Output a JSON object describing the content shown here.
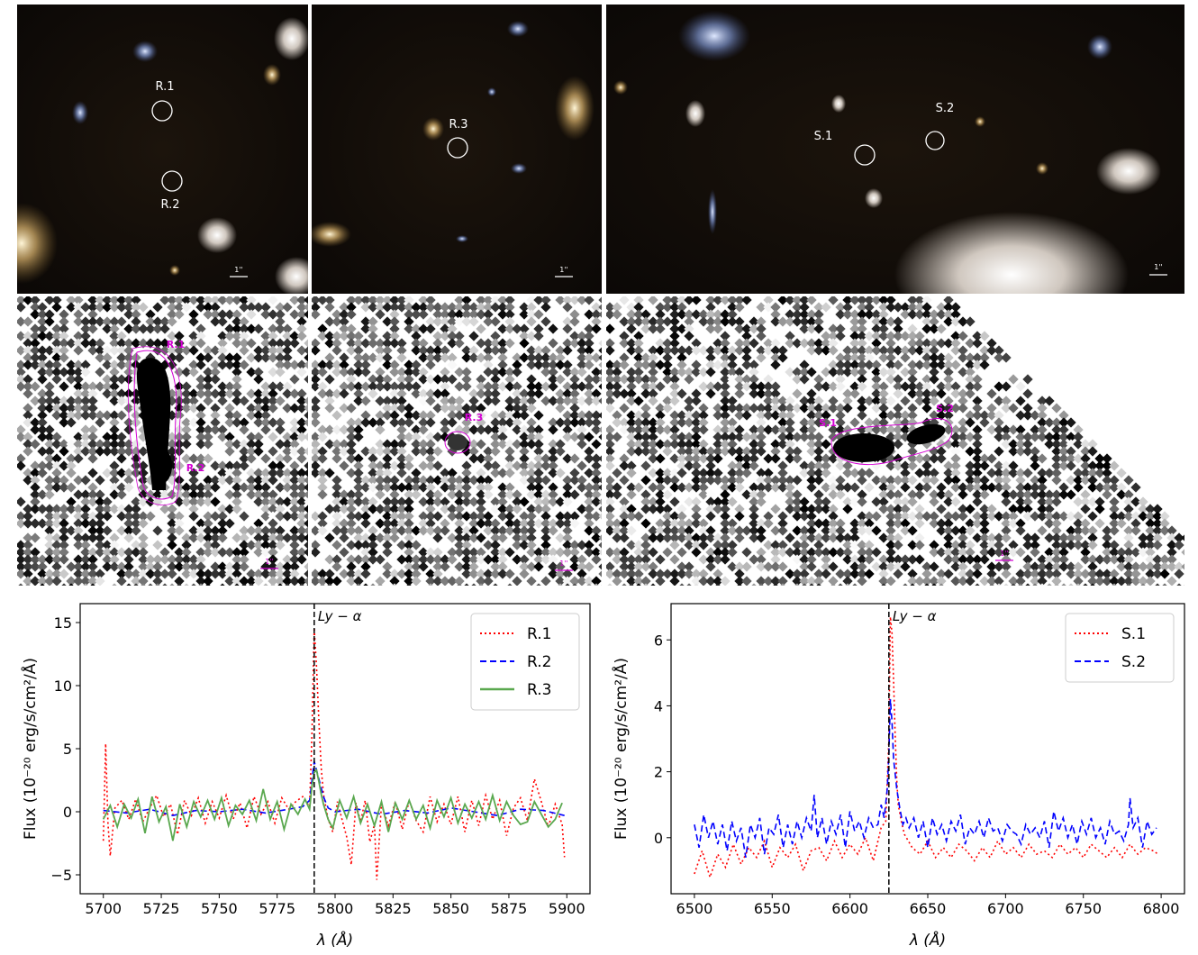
{
  "images": {
    "top": [
      {
        "labels": [
          "R.1",
          "R.2"
        ],
        "scale": "1''"
      },
      {
        "labels": [
          "R.3"
        ],
        "scale": "1''"
      },
      {
        "labels": [
          "S.1",
          "S.2"
        ],
        "scale": "1''"
      }
    ],
    "bottom": [
      {
        "labels": [
          "R.1",
          "R.2"
        ],
        "scale": "1''",
        "contour_color": "#d400d4"
      },
      {
        "labels": [
          "R.3"
        ],
        "scale": "1''",
        "contour_color": "#d400d4"
      },
      {
        "labels": [
          "S.1",
          "S.2"
        ],
        "scale": "1''",
        "contour_color": "#d400d4"
      }
    ]
  },
  "chart_data": [
    {
      "type": "line",
      "xlabel": "λ (Å)",
      "ylabel": "Flux (10⁻²⁰ erg/s/cm²/Å)",
      "xlim": [
        5690,
        5910
      ],
      "ylim": [
        -6.5,
        16.5
      ],
      "xticks": [
        5700,
        5725,
        5750,
        5775,
        5800,
        5825,
        5850,
        5875,
        5900
      ],
      "yticks": [
        -5,
        0,
        5,
        10,
        15
      ],
      "annotation": {
        "text": "Ly − α",
        "x": 5791
      },
      "legend_position": "top-right",
      "series": [
        {
          "name": "R.1",
          "color": "#ff0000",
          "style": "dotted",
          "x": [
            5700,
            5701,
            5702,
            5703,
            5705,
            5708,
            5711,
            5714,
            5717,
            5720,
            5723,
            5726,
            5729,
            5732,
            5735,
            5738,
            5741,
            5744,
            5747,
            5750,
            5753,
            5756,
            5759,
            5762,
            5765,
            5768,
            5771,
            5774,
            5777,
            5780,
            5783,
            5786,
            5789,
            5790,
            5791,
            5792,
            5793,
            5794,
            5795,
            5797,
            5799,
            5801,
            5803,
            5805,
            5807,
            5809,
            5811,
            5813,
            5815,
            5817,
            5818,
            5820,
            5823,
            5826,
            5829,
            5832,
            5835,
            5838,
            5841,
            5844,
            5847,
            5850,
            5853,
            5856,
            5859,
            5862,
            5865,
            5868,
            5871,
            5874,
            5877,
            5880,
            5883,
            5886,
            5889,
            5892,
            5895,
            5897,
            5898,
            5899
          ],
          "y": [
            -2.3,
            5.4,
            -1.0,
            -3.5,
            0.3,
            0.9,
            -0.6,
            1.0,
            -0.8,
            0.3,
            1.3,
            -0.4,
            0.6,
            -1.8,
            0.9,
            -0.3,
            1.1,
            -0.9,
            0.8,
            -0.5,
            1.3,
            -0.6,
            0.7,
            -1.3,
            1.2,
            -0.2,
            0.8,
            -0.9,
            1.1,
            0.2,
            0.8,
            1.2,
            0.4,
            6.0,
            14.6,
            11.5,
            7.2,
            3.5,
            1.4,
            -0.6,
            -1.6,
            0.8,
            -0.6,
            -2.0,
            -4.2,
            0.7,
            -0.8,
            0.9,
            -2.4,
            -1.0,
            -5.4,
            0.6,
            -1.1,
            0.8,
            -1.4,
            0.9,
            -0.7,
            -1.6,
            1.2,
            -0.8,
            0.6,
            -1.0,
            1.2,
            -1.6,
            0.9,
            -1.1,
            1.3,
            -0.6,
            0.9,
            -1.9,
            0.3,
            1.1,
            -0.7,
            2.6,
            0.8,
            -1.2,
            0.6,
            -0.5,
            -1.0,
            -3.6
          ]
        },
        {
          "name": "R.2",
          "color": "#0000ff",
          "style": "dashed",
          "x": [
            5700,
            5710,
            5720,
            5730,
            5740,
            5750,
            5760,
            5770,
            5780,
            5786,
            5789,
            5791,
            5793,
            5795,
            5797,
            5800,
            5810,
            5820,
            5830,
            5840,
            5850,
            5860,
            5870,
            5880,
            5890,
            5899
          ],
          "y": [
            0.1,
            -0.1,
            0.2,
            -0.3,
            0.1,
            0.0,
            0.2,
            -0.1,
            0.2,
            0.4,
            0.9,
            4.0,
            2.6,
            1.2,
            0.3,
            0.0,
            0.2,
            -0.2,
            0.1,
            -0.1,
            0.3,
            0.0,
            -0.3,
            0.2,
            0.1,
            -0.3
          ]
        },
        {
          "name": "R.3",
          "color": "#5aa84f",
          "style": "solid",
          "x": [
            5700,
            5703,
            5706,
            5709,
            5712,
            5715,
            5718,
            5721,
            5724,
            5727,
            5730,
            5733,
            5736,
            5739,
            5742,
            5745,
            5748,
            5751,
            5754,
            5757,
            5760,
            5763,
            5766,
            5769,
            5772,
            5775,
            5778,
            5781,
            5784,
            5787,
            5789,
            5790,
            5791,
            5792,
            5793,
            5794,
            5795,
            5797,
            5799,
            5802,
            5805,
            5808,
            5811,
            5814,
            5817,
            5820,
            5823,
            5826,
            5829,
            5832,
            5835,
            5838,
            5841,
            5844,
            5847,
            5850,
            5853,
            5856,
            5859,
            5862,
            5865,
            5868,
            5871,
            5874,
            5877,
            5880,
            5883,
            5886,
            5889,
            5892,
            5895,
            5898
          ],
          "y": [
            -0.6,
            0.5,
            -1.2,
            0.6,
            -0.5,
            1.0,
            -1.7,
            1.2,
            -0.8,
            0.4,
            -2.3,
            0.6,
            -1.2,
            0.8,
            -0.4,
            0.9,
            -0.6,
            1.1,
            -1.1,
            0.5,
            -0.2,
            0.9,
            -0.7,
            1.8,
            -0.6,
            0.8,
            -1.4,
            0.6,
            -0.2,
            1.0,
            0.2,
            2.0,
            3.1,
            3.3,
            2.4,
            1.4,
            0.6,
            -0.6,
            -1.3,
            0.9,
            -0.5,
            1.2,
            -0.9,
            0.6,
            -1.1,
            0.8,
            -1.6,
            0.7,
            -0.6,
            0.9,
            -0.6,
            0.5,
            -1.3,
            0.9,
            -0.4,
            1.1,
            -0.9,
            0.6,
            -0.5,
            0.8,
            -0.6,
            1.3,
            -0.7,
            0.8,
            -0.3,
            -1.0,
            -0.8,
            0.8,
            -0.2,
            -1.2,
            -0.6,
            0.7
          ]
        }
      ]
    },
    {
      "type": "line",
      "xlabel": "λ (Å)",
      "ylabel": "Flux (10⁻²⁰ erg/s/cm²/Å)",
      "xlim": [
        6485,
        6815
      ],
      "ylim": [
        -1.7,
        7.1
      ],
      "xticks": [
        6500,
        6550,
        6600,
        6650,
        6700,
        6750,
        6800
      ],
      "yticks": [
        0,
        2,
        4,
        6
      ],
      "annotation": {
        "text": "Ly − α",
        "x": 6625
      },
      "legend_position": "top-right",
      "series": [
        {
          "name": "S.1",
          "color": "#ff0000",
          "style": "dotted",
          "x": [
            6500,
            6505,
            6510,
            6515,
            6520,
            6525,
            6530,
            6535,
            6540,
            6545,
            6550,
            6555,
            6560,
            6565,
            6570,
            6575,
            6580,
            6585,
            6590,
            6595,
            6600,
            6605,
            6610,
            6615,
            6620,
            6623,
            6625,
            6626,
            6627,
            6628,
            6629,
            6630,
            6631,
            6633,
            6635,
            6640,
            6645,
            6650,
            6655,
            6660,
            6665,
            6670,
            6675,
            6680,
            6685,
            6690,
            6695,
            6700,
            6705,
            6710,
            6715,
            6720,
            6725,
            6730,
            6735,
            6740,
            6745,
            6750,
            6755,
            6760,
            6765,
            6770,
            6775,
            6780,
            6785,
            6790,
            6795,
            6798
          ],
          "y": [
            -1.1,
            -0.4,
            -1.2,
            -0.5,
            -0.9,
            -0.2,
            -0.8,
            -0.3,
            -0.6,
            -0.1,
            -0.9,
            -0.3,
            -0.6,
            -0.2,
            -1.0,
            -0.4,
            -0.3,
            -0.7,
            -0.1,
            -0.6,
            -0.2,
            -0.5,
            0.0,
            -0.7,
            0.3,
            0.5,
            3.0,
            6.7,
            6.2,
            4.8,
            3.2,
            1.8,
            1.0,
            0.5,
            0.1,
            -0.3,
            -0.5,
            -0.1,
            -0.6,
            -0.3,
            -0.6,
            -0.2,
            -0.4,
            -0.7,
            -0.3,
            -0.6,
            -0.1,
            -0.5,
            -0.3,
            -0.6,
            -0.2,
            -0.5,
            -0.4,
            -0.6,
            -0.2,
            -0.5,
            -0.3,
            -0.6,
            -0.2,
            -0.4,
            -0.6,
            -0.3,
            -0.6,
            -0.2,
            -0.5,
            -0.3,
            -0.4,
            -0.5
          ]
        },
        {
          "name": "S.2",
          "color": "#0000ff",
          "style": "dashed",
          "x": [
            6500,
            6503,
            6506,
            6509,
            6512,
            6515,
            6518,
            6521,
            6524,
            6527,
            6530,
            6533,
            6536,
            6539,
            6542,
            6545,
            6548,
            6551,
            6554,
            6557,
            6560,
            6563,
            6566,
            6569,
            6572,
            6575,
            6577,
            6579,
            6582,
            6585,
            6588,
            6591,
            6594,
            6597,
            6600,
            6603,
            6606,
            6609,
            6612,
            6615,
            6618,
            6620,
            6622,
            6624,
            6625,
            6626,
            6627,
            6628,
            6630,
            6632,
            6634,
            6636,
            6638,
            6641,
            6644,
            6647,
            6650,
            6653,
            6656,
            6659,
            6662,
            6665,
            6668,
            6671,
            6674,
            6677,
            6680,
            6683,
            6686,
            6689,
            6692,
            6695,
            6698,
            6701,
            6704,
            6707,
            6710,
            6713,
            6716,
            6719,
            6722,
            6725,
            6728,
            6731,
            6734,
            6737,
            6740,
            6743,
            6746,
            6749,
            6752,
            6755,
            6758,
            6761,
            6764,
            6767,
            6770,
            6773,
            6776,
            6779,
            6780,
            6782,
            6785,
            6788,
            6791,
            6794,
            6797
          ],
          "y": [
            0.4,
            -0.3,
            0.7,
            0.0,
            0.5,
            -0.2,
            0.4,
            -0.4,
            0.5,
            -0.1,
            0.3,
            -0.6,
            0.4,
            0.0,
            0.6,
            -0.5,
            0.3,
            0.1,
            0.7,
            -0.3,
            0.4,
            -0.2,
            0.5,
            0.0,
            0.6,
            0.2,
            1.3,
            0.0,
            0.6,
            -0.2,
            0.5,
            0.1,
            0.7,
            -0.3,
            0.8,
            0.2,
            0.5,
            0.0,
            0.6,
            0.3,
            0.4,
            1.0,
            0.6,
            1.5,
            2.5,
            4.2,
            3.5,
            2.4,
            1.5,
            0.9,
            0.4,
            0.6,
            0.3,
            0.6,
            0.0,
            0.5,
            -0.3,
            0.6,
            0.1,
            0.4,
            -0.1,
            0.5,
            0.2,
            0.7,
            -0.2,
            0.3,
            0.1,
            0.5,
            0.0,
            0.6,
            0.2,
            0.3,
            -0.1,
            0.4,
            0.2,
            0.1,
            -0.2,
            0.4,
            0.1,
            0.3,
            0.0,
            0.5,
            -0.3,
            0.8,
            0.2,
            0.6,
            0.0,
            0.4,
            -0.2,
            0.5,
            0.1,
            0.6,
            0.0,
            0.3,
            -0.2,
            0.5,
            0.1,
            0.2,
            -0.1,
            0.4,
            1.2,
            0.3,
            0.6,
            -0.3,
            0.5,
            0.1,
            0.3
          ]
        }
      ]
    }
  ]
}
